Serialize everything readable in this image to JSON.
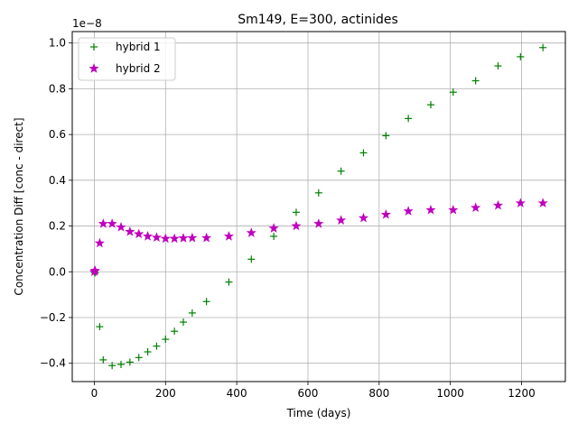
{
  "chart_data": {
    "type": "scatter",
    "title": "Sm149, E=300, actinides",
    "xlabel": "Time (days)",
    "ylabel": "Concentration Diff [conc - direct]",
    "y_offset_label": "1e−8",
    "xlim": [
      -62,
      1323
    ],
    "ylim": [
      -0.48,
      1.05
    ],
    "xticks": [
      0,
      200,
      400,
      600,
      800,
      1000,
      1200
    ],
    "yticks": [
      -0.4,
      -0.2,
      0.0,
      0.2,
      0.4,
      0.6,
      0.8,
      1.0
    ],
    "xtick_labels": [
      "0",
      "200",
      "400",
      "600",
      "800",
      "1000",
      "1200"
    ],
    "ytick_labels": [
      "−0.4",
      "−0.2",
      "0.0",
      "0.2",
      "0.4",
      "0.6",
      "0.8",
      "1.0"
    ],
    "grid": true,
    "legend_position": "upper-left",
    "series": [
      {
        "name": "hybrid 1",
        "marker": "plus",
        "color": "#008000",
        "points": [
          [
            0,
            0.0
          ],
          [
            2,
            -0.005
          ],
          [
            15,
            -0.24
          ],
          [
            25,
            -0.385
          ],
          [
            50,
            -0.41
          ],
          [
            75,
            -0.405
          ],
          [
            100,
            -0.395
          ],
          [
            125,
            -0.375
          ],
          [
            150,
            -0.35
          ],
          [
            175,
            -0.325
          ],
          [
            200,
            -0.295
          ],
          [
            225,
            -0.26
          ],
          [
            250,
            -0.22
          ],
          [
            275,
            -0.18
          ],
          [
            315,
            -0.13
          ],
          [
            378,
            -0.045
          ],
          [
            441,
            0.055
          ],
          [
            504,
            0.155
          ],
          [
            567,
            0.26
          ],
          [
            630,
            0.345
          ],
          [
            693,
            0.44
          ],
          [
            756,
            0.52
          ],
          [
            819,
            0.595
          ],
          [
            882,
            0.67
          ],
          [
            945,
            0.73
          ],
          [
            1008,
            0.785
          ],
          [
            1071,
            0.835
          ],
          [
            1134,
            0.9
          ],
          [
            1197,
            0.94
          ],
          [
            1260,
            0.98
          ]
        ]
      },
      {
        "name": "hybrid 2",
        "marker": "star",
        "color": "#bf00bf",
        "points": [
          [
            0,
            0.0
          ],
          [
            2,
            0.005
          ],
          [
            15,
            0.125
          ],
          [
            25,
            0.21
          ],
          [
            50,
            0.21
          ],
          [
            75,
            0.195
          ],
          [
            100,
            0.175
          ],
          [
            125,
            0.165
          ],
          [
            150,
            0.155
          ],
          [
            175,
            0.15
          ],
          [
            200,
            0.145
          ],
          [
            225,
            0.145
          ],
          [
            250,
            0.147
          ],
          [
            275,
            0.148
          ],
          [
            315,
            0.148
          ],
          [
            378,
            0.155
          ],
          [
            441,
            0.17
          ],
          [
            504,
            0.19
          ],
          [
            567,
            0.2
          ],
          [
            630,
            0.21
          ],
          [
            693,
            0.225
          ],
          [
            756,
            0.235
          ],
          [
            819,
            0.25
          ],
          [
            882,
            0.265
          ],
          [
            945,
            0.27
          ],
          [
            1008,
            0.27
          ],
          [
            1071,
            0.28
          ],
          [
            1134,
            0.29
          ],
          [
            1197,
            0.3
          ],
          [
            1260,
            0.3
          ]
        ]
      }
    ]
  }
}
